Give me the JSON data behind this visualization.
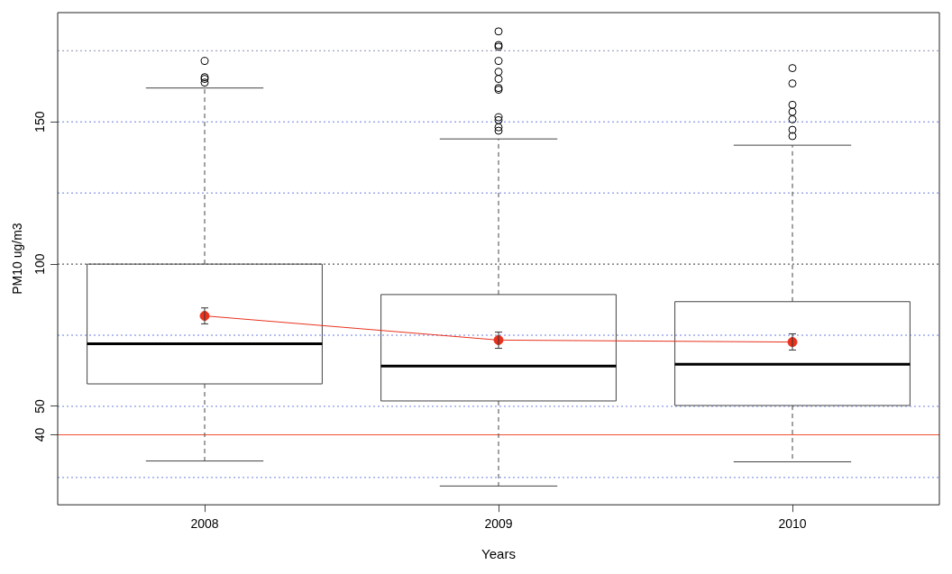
{
  "chart_data": {
    "type": "box",
    "xlabel": "Years",
    "ylabel": "PM10 ug/m3",
    "categories": [
      "2008",
      "2009",
      "2010"
    ],
    "ylim": [
      15.4,
      188.4
    ],
    "yticks": [
      40,
      50,
      100,
      150
    ],
    "grid": false,
    "legend": false,
    "boxes": [
      {
        "low": 30.8,
        "q1": 57.9,
        "median": 72,
        "q3": 100,
        "high": 161.9,
        "outliers": [
          171.4,
          165.7,
          165.1,
          163.8
        ]
      },
      {
        "low": 22,
        "q1": 51.9,
        "median": 64.2,
        "q3": 89.3,
        "high": 144,
        "outliers": [
          181.8,
          177,
          176.4,
          171.4,
          167.6,
          165.1,
          161.9,
          161.3,
          151.6,
          150.6,
          148.1,
          146.9
        ]
      },
      {
        "low": 30.5,
        "q1": 50.3,
        "median": 64.8,
        "q3": 86.8,
        "high": 141.8,
        "outliers": [
          168.9,
          163.5,
          156,
          153.5,
          150.9,
          147.2,
          145
        ]
      }
    ],
    "series": [
      {
        "type": "line",
        "color": "#e8321e",
        "marker": "circle",
        "values": [
          81.8,
          73.3,
          72.6
        ],
        "errors": [
          [
            79.0,
            84.6
          ],
          [
            70.4,
            76.1
          ],
          [
            69.8,
            75.5
          ]
        ]
      }
    ],
    "ref_lines": [
      {
        "axis": "y",
        "value": 25,
        "color": "#6b7fe0",
        "line_style": "dotted"
      },
      {
        "axis": "y",
        "value": 50,
        "color": "#6b7fe0",
        "line_style": "dotted"
      },
      {
        "axis": "y",
        "value": 75,
        "color": "#6b7fe0",
        "line_style": "dotted"
      },
      {
        "axis": "y",
        "value": 100,
        "color": "#333333",
        "line_style": "dotted"
      },
      {
        "axis": "y",
        "value": 125,
        "color": "#6b7fe0",
        "line_style": "dotted"
      },
      {
        "axis": "y",
        "value": 150,
        "color": "#6b7fe0",
        "line_style": "dotted"
      },
      {
        "axis": "y",
        "value": 175,
        "color": "#8890b0",
        "line_style": "dotted"
      },
      {
        "axis": "y",
        "value": 40,
        "color": "#f05030",
        "line_style": "solid"
      }
    ]
  }
}
